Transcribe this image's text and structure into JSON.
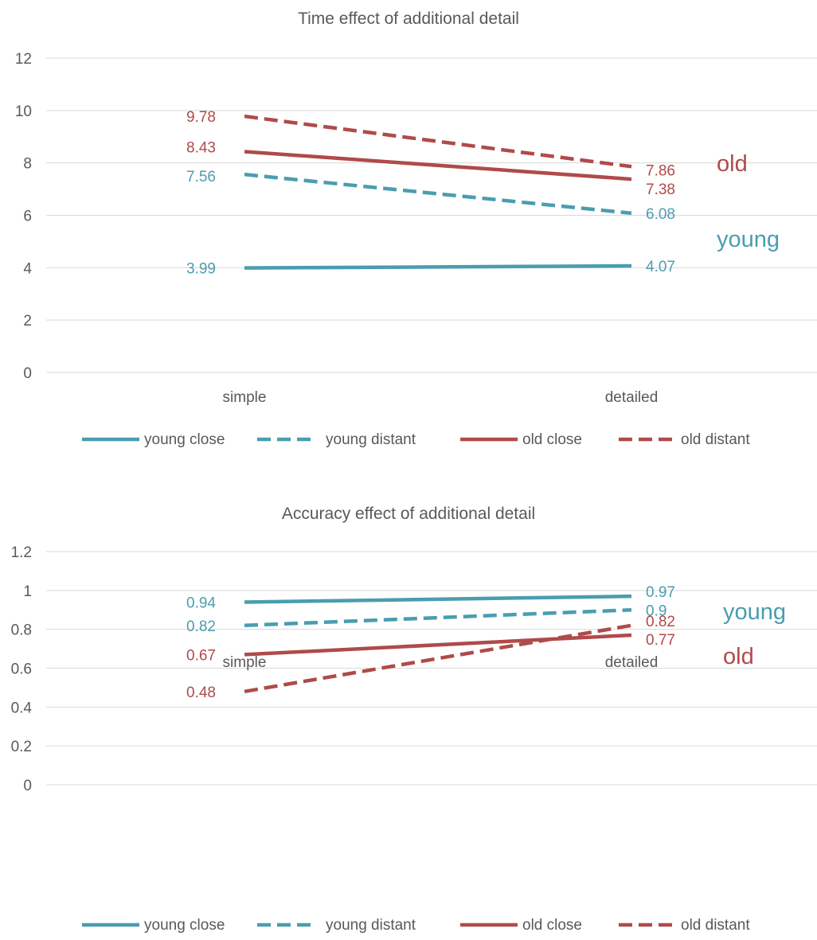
{
  "chart_data": [
    {
      "type": "line",
      "title": "Time effect of additional detail",
      "categories": [
        "simple",
        "detailed"
      ],
      "ylim": [
        0,
        12
      ],
      "yticks": [
        0,
        2,
        4,
        6,
        8,
        10,
        12
      ],
      "grid": true,
      "legend_position": "bottom",
      "colors": {
        "young": "#4a9db0",
        "old": "#b04a4a"
      },
      "series": [
        {
          "name": "young close",
          "values": [
            3.99,
            4.07
          ],
          "color": "#4a9db0",
          "dashed": false,
          "labels": [
            "3.99",
            "4.07"
          ]
        },
        {
          "name": "young distant",
          "values": [
            7.56,
            6.08
          ],
          "color": "#4a9db0",
          "dashed": true,
          "labels": [
            "7.56",
            "6.08"
          ]
        },
        {
          "name": "old close",
          "values": [
            8.43,
            7.38
          ],
          "color": "#b04a4a",
          "dashed": false,
          "labels": [
            "8.43",
            "7.38"
          ]
        },
        {
          "name": "old distant",
          "values": [
            9.78,
            7.86
          ],
          "color": "#b04a4a",
          "dashed": true,
          "labels": [
            "9.78",
            "7.86"
          ]
        }
      ],
      "group_labels": [
        {
          "text": "old",
          "color": "#b04a4a",
          "y": 8.0
        },
        {
          "text": "young",
          "color": "#4a9db0",
          "y": 5.0
        }
      ]
    },
    {
      "type": "line",
      "title": "Accuracy effect of additional detail",
      "categories": [
        "simple",
        "detailed"
      ],
      "ylim": [
        0,
        1.2
      ],
      "yticks": [
        0,
        0.2,
        0.4,
        0.6,
        0.8,
        1,
        1.2
      ],
      "ytick_labels": [
        "0",
        "0.2",
        "0.4",
        "0.6",
        "0.8",
        "1",
        "1.2"
      ],
      "grid": true,
      "legend_position": "bottom",
      "colors": {
        "young": "#4a9db0",
        "old": "#b04a4a"
      },
      "series": [
        {
          "name": "young close",
          "values": [
            0.94,
            0.97
          ],
          "color": "#4a9db0",
          "dashed": false,
          "labels": [
            "0.94",
            "0.97"
          ]
        },
        {
          "name": "young distant",
          "values": [
            0.82,
            0.9
          ],
          "color": "#4a9db0",
          "dashed": true,
          "labels": [
            "0.82",
            "0.9"
          ]
        },
        {
          "name": "old close",
          "values": [
            0.67,
            0.77
          ],
          "color": "#b04a4a",
          "dashed": false,
          "labels": [
            "0.67",
            "0.77"
          ]
        },
        {
          "name": "old distant",
          "values": [
            0.48,
            0.82
          ],
          "color": "#b04a4a",
          "dashed": true,
          "labels": [
            "0.48",
            "0.82"
          ]
        }
      ],
      "group_labels": [
        {
          "text": "young",
          "color": "#4a9db0",
          "y": 0.97
        },
        {
          "text": "old",
          "color": "#b04a4a",
          "y": 0.8
        }
      ]
    }
  ]
}
